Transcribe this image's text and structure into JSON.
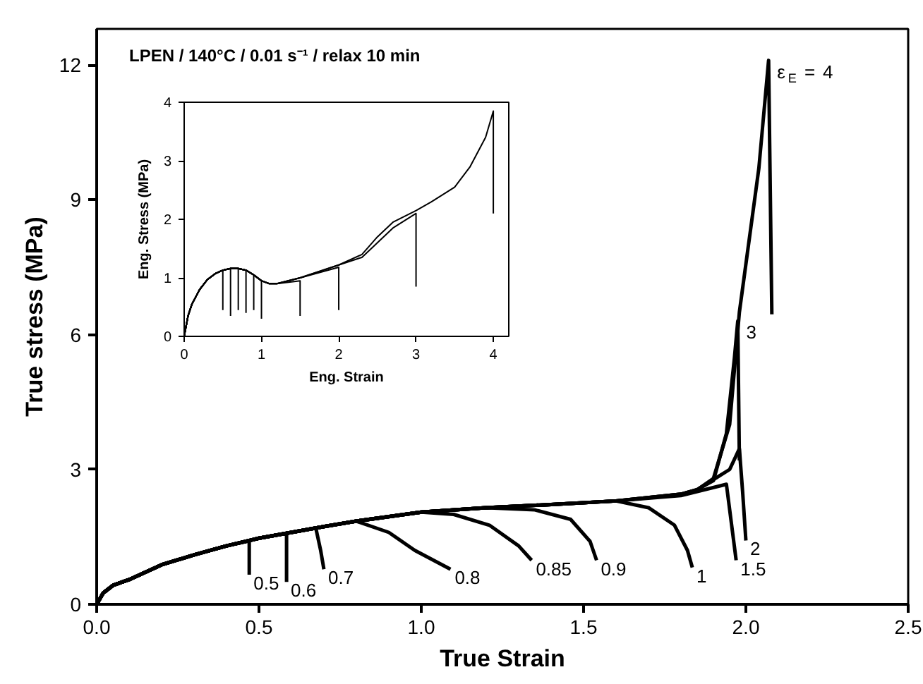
{
  "chart_data": [
    {
      "type": "line",
      "title": "LPEN / 140°C / 0.01 s⁻¹ / relax 10 min",
      "xlabel": "True Strain",
      "ylabel": "True stress (MPa)",
      "xlim": [
        0,
        2.5
      ],
      "ylim": [
        0,
        12.8
      ],
      "xticks": [
        {
          "value": 0,
          "label": "0.0"
        },
        {
          "value": 0.5,
          "label": "0.5"
        },
        {
          "value": 1,
          "label": "1.0"
        },
        {
          "value": 1.5,
          "label": "1.5"
        },
        {
          "value": 2,
          "label": "2.0"
        },
        {
          "value": 2.5,
          "label": "2.5"
        }
      ],
      "yticks": [
        0,
        3,
        6,
        9,
        12
      ],
      "series": [
        {
          "name": "0.5",
          "color": "#000000",
          "x": [
            0,
            0.02,
            0.05,
            0.1,
            0.2,
            0.3,
            0.4,
            0.47,
            0.47
          ],
          "values": [
            0,
            0.25,
            0.42,
            0.55,
            0.88,
            1.1,
            1.3,
            1.41,
            0.66
          ]
        },
        {
          "name": "0.6",
          "color": "#000000",
          "x": [
            0,
            0.02,
            0.05,
            0.1,
            0.2,
            0.3,
            0.4,
            0.5,
            0.585,
            0.585
          ],
          "values": [
            0,
            0.25,
            0.42,
            0.55,
            0.88,
            1.1,
            1.3,
            1.47,
            1.58,
            0.5
          ]
        },
        {
          "name": "0.7",
          "color": "#000000",
          "x": [
            0,
            0.02,
            0.05,
            0.1,
            0.2,
            0.3,
            0.4,
            0.5,
            0.6,
            0.675,
            0.69,
            0.7
          ],
          "values": [
            0,
            0.25,
            0.42,
            0.55,
            0.88,
            1.1,
            1.3,
            1.47,
            1.6,
            1.7,
            1.2,
            0.78
          ]
        },
        {
          "name": "0.8",
          "color": "#000000",
          "x": [
            0,
            0.02,
            0.05,
            0.1,
            0.2,
            0.3,
            0.4,
            0.5,
            0.6,
            0.7,
            0.8,
            0.9,
            0.98,
            1.09
          ],
          "values": [
            0,
            0.25,
            0.42,
            0.55,
            0.88,
            1.1,
            1.3,
            1.47,
            1.6,
            1.73,
            1.85,
            1.6,
            1.2,
            0.78
          ]
        },
        {
          "name": "0.85",
          "color": "#000000",
          "x": [
            0,
            0.02,
            0.05,
            0.1,
            0.2,
            0.3,
            0.4,
            0.5,
            0.6,
            0.7,
            0.8,
            1.0,
            1.1,
            1.21,
            1.3,
            1.34
          ],
          "values": [
            0,
            0.25,
            0.42,
            0.55,
            0.88,
            1.1,
            1.3,
            1.47,
            1.6,
            1.73,
            1.85,
            2.05,
            2.0,
            1.76,
            1.3,
            0.98
          ]
        },
        {
          "name": "0.9",
          "color": "#000000",
          "x": [
            0,
            0.02,
            0.05,
            0.1,
            0.2,
            0.3,
            0.4,
            0.5,
            0.6,
            0.7,
            0.8,
            1.0,
            1.2,
            1.35,
            1.46,
            1.52,
            1.54
          ],
          "values": [
            0,
            0.25,
            0.42,
            0.55,
            0.88,
            1.1,
            1.3,
            1.47,
            1.6,
            1.73,
            1.85,
            2.05,
            2.15,
            2.1,
            1.89,
            1.4,
            0.98
          ]
        },
        {
          "name": "1",
          "color": "#000000",
          "x": [
            0,
            0.02,
            0.05,
            0.1,
            0.2,
            0.3,
            0.4,
            0.5,
            0.6,
            0.7,
            0.8,
            1.0,
            1.2,
            1.4,
            1.6,
            1.7,
            1.78,
            1.82,
            1.835
          ],
          "values": [
            0,
            0.25,
            0.42,
            0.55,
            0.88,
            1.1,
            1.3,
            1.47,
            1.6,
            1.73,
            1.85,
            2.05,
            2.15,
            2.22,
            2.3,
            2.15,
            1.76,
            1.2,
            0.82
          ]
        },
        {
          "name": "1.5",
          "color": "#000000",
          "x": [
            0,
            0.02,
            0.05,
            0.1,
            0.2,
            0.3,
            0.4,
            0.5,
            0.6,
            0.7,
            0.8,
            1.0,
            1.2,
            1.4,
            1.6,
            1.8,
            1.94,
            1.97
          ],
          "values": [
            0,
            0.25,
            0.42,
            0.55,
            0.88,
            1.1,
            1.3,
            1.47,
            1.6,
            1.73,
            1.85,
            2.05,
            2.15,
            2.22,
            2.3,
            2.42,
            2.67,
            0.98
          ]
        },
        {
          "name": "2",
          "color": "#000000",
          "x": [
            0,
            0.02,
            0.05,
            0.1,
            0.2,
            0.3,
            0.4,
            0.5,
            0.6,
            0.7,
            0.8,
            1.0,
            1.2,
            1.4,
            1.6,
            1.8,
            1.85,
            1.95,
            1.98,
            1.99,
            2.0
          ],
          "values": [
            0,
            0.25,
            0.42,
            0.55,
            0.88,
            1.1,
            1.3,
            1.47,
            1.6,
            1.73,
            1.85,
            2.05,
            2.15,
            2.22,
            2.3,
            2.45,
            2.55,
            3.0,
            3.46,
            2.5,
            1.42
          ]
        },
        {
          "name": "3",
          "color": "#000000",
          "x": [
            0,
            0.02,
            0.05,
            0.1,
            0.2,
            0.3,
            0.4,
            0.5,
            0.6,
            0.7,
            0.8,
            1.0,
            1.2,
            1.4,
            1.6,
            1.8,
            1.85,
            1.9,
            1.94,
            1.965,
            1.975,
            1.98
          ],
          "values": [
            0,
            0.25,
            0.42,
            0.55,
            0.88,
            1.1,
            1.3,
            1.47,
            1.6,
            1.73,
            1.85,
            2.05,
            2.15,
            2.22,
            2.3,
            2.45,
            2.55,
            2.75,
            3.8,
            5.5,
            6.3,
            3.2
          ]
        },
        {
          "name": "ε$_{E}$ = 4",
          "color": "#000000",
          "x": [
            0,
            0.02,
            0.05,
            0.1,
            0.2,
            0.3,
            0.4,
            0.5,
            0.6,
            0.7,
            0.8,
            1.0,
            1.2,
            1.4,
            1.6,
            1.8,
            1.85,
            1.9,
            1.95,
            1.98,
            2.04,
            2.07,
            2.08
          ],
          "values": [
            0,
            0.25,
            0.42,
            0.55,
            0.88,
            1.1,
            1.3,
            1.47,
            1.6,
            1.73,
            1.85,
            2.05,
            2.15,
            2.22,
            2.3,
            2.45,
            2.55,
            2.8,
            4.0,
            6.5,
            9.7,
            12.1,
            6.45
          ]
        }
      ]
    },
    {
      "type": "line",
      "xlabel": "Eng. Strain",
      "ylabel": "Eng. Stress (MPa)",
      "xlim": [
        0,
        4.2
      ],
      "ylim": [
        0,
        4
      ],
      "xticks": [
        0,
        1,
        2,
        3,
        4
      ],
      "yticks": [
        0,
        1,
        2,
        3,
        4
      ],
      "series": [
        {
          "color": "#000000",
          "x": [
            0,
            0.05,
            0.1,
            0.2,
            0.3,
            0.4,
            0.5,
            0.5
          ],
          "values": [
            0,
            0.35,
            0.55,
            0.8,
            0.97,
            1.07,
            1.13,
            0.45
          ]
        },
        {
          "color": "#000000",
          "x": [
            0,
            0.05,
            0.1,
            0.2,
            0.3,
            0.4,
            0.5,
            0.6,
            0.6
          ],
          "values": [
            0,
            0.35,
            0.55,
            0.8,
            0.97,
            1.07,
            1.13,
            1.16,
            0.35
          ]
        },
        {
          "color": "#000000",
          "x": [
            0,
            0.05,
            0.1,
            0.2,
            0.3,
            0.4,
            0.5,
            0.6,
            0.7,
            0.7
          ],
          "values": [
            0,
            0.35,
            0.55,
            0.8,
            0.97,
            1.07,
            1.13,
            1.16,
            1.16,
            0.45
          ]
        },
        {
          "color": "#000000",
          "x": [
            0,
            0.05,
            0.1,
            0.2,
            0.3,
            0.4,
            0.5,
            0.6,
            0.7,
            0.8,
            0.8
          ],
          "values": [
            0,
            0.35,
            0.55,
            0.8,
            0.97,
            1.07,
            1.13,
            1.16,
            1.16,
            1.13,
            0.4
          ]
        },
        {
          "color": "#000000",
          "x": [
            0,
            0.05,
            0.1,
            0.2,
            0.3,
            0.4,
            0.5,
            0.6,
            0.7,
            0.8,
            0.9,
            0.9
          ],
          "values": [
            0,
            0.35,
            0.55,
            0.8,
            0.97,
            1.07,
            1.13,
            1.16,
            1.16,
            1.13,
            1.05,
            0.45
          ]
        },
        {
          "color": "#000000",
          "x": [
            0,
            0.05,
            0.1,
            0.2,
            0.3,
            0.4,
            0.5,
            0.6,
            0.7,
            0.8,
            0.9,
            1.0,
            1.0
          ],
          "values": [
            0,
            0.35,
            0.55,
            0.8,
            0.97,
            1.07,
            1.13,
            1.16,
            1.16,
            1.13,
            1.05,
            0.95,
            0.3
          ]
        },
        {
          "color": "#000000",
          "x": [
            0,
            0.05,
            0.1,
            0.2,
            0.3,
            0.4,
            0.5,
            0.6,
            0.7,
            0.8,
            0.9,
            1.0,
            1.1,
            1.2,
            1.5,
            1.5
          ],
          "values": [
            0,
            0.35,
            0.55,
            0.8,
            0.97,
            1.07,
            1.13,
            1.16,
            1.16,
            1.13,
            1.05,
            0.95,
            0.9,
            0.9,
            0.95,
            0.35
          ]
        },
        {
          "color": "#000000",
          "x": [
            0,
            0.05,
            0.1,
            0.2,
            0.3,
            0.4,
            0.5,
            0.6,
            0.7,
            0.8,
            0.9,
            1.0,
            1.1,
            1.2,
            1.5,
            2.0,
            2.0
          ],
          "values": [
            0,
            0.35,
            0.55,
            0.8,
            0.97,
            1.07,
            1.13,
            1.16,
            1.16,
            1.13,
            1.05,
            0.95,
            0.9,
            0.9,
            1.0,
            1.18,
            0.45
          ]
        },
        {
          "color": "#000000",
          "x": [
            0,
            0.05,
            0.1,
            0.2,
            0.3,
            0.4,
            0.5,
            0.6,
            0.7,
            0.8,
            0.9,
            1.0,
            1.1,
            1.2,
            1.5,
            2.0,
            2.3,
            2.5,
            2.7,
            3.0,
            3.0
          ],
          "values": [
            0,
            0.35,
            0.55,
            0.8,
            0.97,
            1.07,
            1.13,
            1.16,
            1.16,
            1.13,
            1.05,
            0.95,
            0.9,
            0.9,
            1.0,
            1.22,
            1.35,
            1.6,
            1.85,
            2.1,
            0.85
          ]
        },
        {
          "color": "#000000",
          "x": [
            0,
            0.05,
            0.1,
            0.2,
            0.3,
            0.4,
            0.5,
            0.6,
            0.7,
            0.8,
            0.9,
            1.0,
            1.1,
            1.2,
            1.5,
            2.0,
            2.3,
            2.5,
            2.7,
            3.0,
            3.2,
            3.5,
            3.7,
            3.9,
            4.0,
            4.0
          ],
          "values": [
            0,
            0.35,
            0.55,
            0.8,
            0.97,
            1.07,
            1.13,
            1.16,
            1.16,
            1.13,
            1.05,
            0.95,
            0.9,
            0.9,
            1.0,
            1.22,
            1.4,
            1.7,
            1.95,
            2.15,
            2.3,
            2.55,
            2.9,
            3.4,
            3.85,
            2.1
          ]
        }
      ]
    }
  ]
}
